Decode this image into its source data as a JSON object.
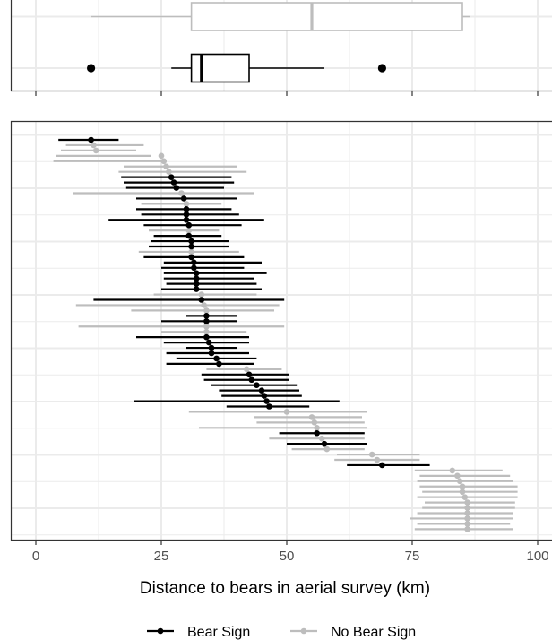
{
  "chart_data": {
    "type": "scatter",
    "title": "",
    "xlabel": "Distance to bears in aerial survey (km)",
    "ylabel": "",
    "xlim": [
      -5,
      102
    ],
    "x_ticks": [
      0,
      25,
      50,
      75,
      100
    ],
    "x_tick_labels": [
      "0",
      "25",
      "50",
      "75",
      "100"
    ],
    "grid": true,
    "legend_position": "bottom",
    "colors": {
      "bear_sign": "#000000",
      "no_bear_sign": "#bdbdbd",
      "grid": "#ebebeb"
    },
    "legend": [
      {
        "label": "Bear Sign",
        "color": "#000000"
      },
      {
        "label": "No Bear Sign",
        "color": "#bdbdbd"
      }
    ],
    "boxplots": [
      {
        "name": "No Bear Sign",
        "lower_whisker": 11,
        "q1": 31,
        "median": 55,
        "q3": 85,
        "upper_whisker": 86.5,
        "outliers": []
      },
      {
        "name": "Bear Sign",
        "lower_whisker": 27,
        "q1": 31,
        "median": 33,
        "q3": 42.5,
        "upper_whisker": 57.5,
        "outliers": [
          11,
          69
        ]
      }
    ],
    "series": [
      {
        "name": "Bear Sign",
        "points": [
          {
            "rank": 1,
            "x": 11,
            "low": 4.5,
            "high": 16.5
          },
          {
            "rank": 8,
            "x": 27,
            "low": 17,
            "high": 39
          },
          {
            "rank": 9,
            "x": 27.5,
            "low": 17.5,
            "high": 39.5
          },
          {
            "rank": 10,
            "x": 28,
            "low": 18,
            "high": 37.5
          },
          {
            "rank": 12,
            "x": 29.5,
            "low": 20,
            "high": 40
          },
          {
            "rank": 14,
            "x": 30,
            "low": 20,
            "high": 39
          },
          {
            "rank": 15,
            "x": 30,
            "low": 21,
            "high": 40.5
          },
          {
            "rank": 16,
            "x": 30,
            "low": 14.5,
            "high": 45.5
          },
          {
            "rank": 17,
            "x": 30.5,
            "low": 21.5,
            "high": 41
          },
          {
            "rank": 19,
            "x": 30.5,
            "low": 23.5,
            "high": 37
          },
          {
            "rank": 20,
            "x": 31,
            "low": 23,
            "high": 38.5
          },
          {
            "rank": 21,
            "x": 31,
            "low": 22.5,
            "high": 38.5
          },
          {
            "rank": 23,
            "x": 31,
            "low": 21.5,
            "high": 41.5
          },
          {
            "rank": 24,
            "x": 31.5,
            "low": 25.5,
            "high": 45
          },
          {
            "rank": 25,
            "x": 31.5,
            "low": 25,
            "high": 41.5
          },
          {
            "rank": 26,
            "x": 32,
            "low": 25.5,
            "high": 46
          },
          {
            "rank": 27,
            "x": 32,
            "low": 25.5,
            "high": 43.5
          },
          {
            "rank": 28,
            "x": 32,
            "low": 26,
            "high": 44
          },
          {
            "rank": 29,
            "x": 32,
            "low": 25,
            "high": 45
          },
          {
            "rank": 31,
            "x": 33,
            "low": 11.5,
            "high": 49.5
          },
          {
            "rank": 34,
            "x": 34,
            "low": 30,
            "high": 40
          },
          {
            "rank": 35,
            "x": 34,
            "low": 25,
            "high": 40
          },
          {
            "rank": 38,
            "x": 34,
            "low": 20,
            "high": 42.5
          },
          {
            "rank": 39,
            "x": 34.5,
            "low": 25.5,
            "high": 42.5
          },
          {
            "rank": 40,
            "x": 35,
            "low": 30,
            "high": 40
          },
          {
            "rank": 41,
            "x": 35,
            "low": 26,
            "high": 42.5
          },
          {
            "rank": 42,
            "x": 36,
            "low": 28,
            "high": 44
          },
          {
            "rank": 43,
            "x": 36.5,
            "low": 26,
            "high": 43.5
          },
          {
            "rank": 45,
            "x": 42.5,
            "low": 33,
            "high": 50.5
          },
          {
            "rank": 46,
            "x": 43,
            "low": 33.5,
            "high": 50.5
          },
          {
            "rank": 47,
            "x": 44,
            "low": 35,
            "high": 52
          },
          {
            "rank": 48,
            "x": 45,
            "low": 36.5,
            "high": 52.5
          },
          {
            "rank": 49,
            "x": 45.5,
            "low": 37,
            "high": 53
          },
          {
            "rank": 50,
            "x": 46,
            "low": 19.5,
            "high": 60.5
          },
          {
            "rank": 51,
            "x": 46.5,
            "low": 38,
            "high": 54.5
          },
          {
            "rank": 56,
            "x": 56,
            "low": 48.5,
            "high": 65.5
          },
          {
            "rank": 58,
            "x": 57.5,
            "low": 50,
            "high": 66
          },
          {
            "rank": 62,
            "x": 69,
            "low": 62,
            "high": 78.5
          }
        ]
      },
      {
        "name": "No Bear Sign",
        "points": [
          {
            "rank": 2,
            "x": 11.5,
            "low": 6,
            "high": 21.5
          },
          {
            "rank": 3,
            "x": 12,
            "low": 5,
            "high": 20
          },
          {
            "rank": 4,
            "x": 25,
            "low": 4,
            "high": 23
          },
          {
            "rank": 5,
            "x": 25.5,
            "low": 3.5,
            "high": 25.5
          },
          {
            "rank": 6,
            "x": 26,
            "low": 17.5,
            "high": 40
          },
          {
            "rank": 7,
            "x": 26.5,
            "low": 16.5,
            "high": 42
          },
          {
            "rank": 11,
            "x": 29,
            "low": 7.5,
            "high": 43.5
          },
          {
            "rank": 13,
            "x": 30,
            "low": 21,
            "high": 37
          },
          {
            "rank": 18,
            "x": 30.5,
            "low": 22.5,
            "high": 36.5
          },
          {
            "rank": 22,
            "x": 31,
            "low": 20.5,
            "high": 40.5
          },
          {
            "rank": 30,
            "x": 33,
            "low": 23.5,
            "high": 44
          },
          {
            "rank": 32,
            "x": 33.5,
            "low": 8,
            "high": 48.5
          },
          {
            "rank": 33,
            "x": 34,
            "low": 19,
            "high": 47.5
          },
          {
            "rank": 36,
            "x": 34,
            "low": 8.5,
            "high": 49.5
          },
          {
            "rank": 37,
            "x": 34,
            "low": 25,
            "high": 42
          },
          {
            "rank": 44,
            "x": 42,
            "low": 34,
            "high": 49
          },
          {
            "rank": 52,
            "x": 50,
            "low": 30.5,
            "high": 66
          },
          {
            "rank": 53,
            "x": 55,
            "low": 43.5,
            "high": 65
          },
          {
            "rank": 54,
            "x": 55.5,
            "low": 44,
            "high": 65.5
          },
          {
            "rank": 55,
            "x": 56,
            "low": 32.5,
            "high": 66
          },
          {
            "rank": 57,
            "x": 57,
            "low": 46.5,
            "high": 65.5
          },
          {
            "rank": 59,
            "x": 58,
            "low": 51,
            "high": 65.5
          },
          {
            "rank": 60,
            "x": 67,
            "low": 60,
            "high": 76.5
          },
          {
            "rank": 61,
            "x": 68,
            "low": 59.5,
            "high": 76.5
          },
          {
            "rank": 63,
            "x": 83,
            "low": 75.5,
            "high": 93
          },
          {
            "rank": 64,
            "x": 84,
            "low": 76.5,
            "high": 94.5
          },
          {
            "rank": 65,
            "x": 84.5,
            "low": 76,
            "high": 95
          },
          {
            "rank": 66,
            "x": 85,
            "low": 76.5,
            "high": 96
          },
          {
            "rank": 67,
            "x": 85,
            "low": 77,
            "high": 96
          },
          {
            "rank": 68,
            "x": 85.5,
            "low": 76,
            "high": 96
          },
          {
            "rank": 69,
            "x": 86,
            "low": 77.5,
            "high": 95.5
          },
          {
            "rank": 70,
            "x": 86,
            "low": 77,
            "high": 95.5
          },
          {
            "rank": 71,
            "x": 86,
            "low": 76,
            "high": 95
          },
          {
            "rank": 72,
            "x": 86,
            "low": 74.5,
            "high": 95
          },
          {
            "rank": 73,
            "x": 86,
            "low": 76,
            "high": 94.5
          },
          {
            "rank": 74,
            "x": 86,
            "low": 75.5,
            "high": 95
          }
        ]
      }
    ]
  }
}
